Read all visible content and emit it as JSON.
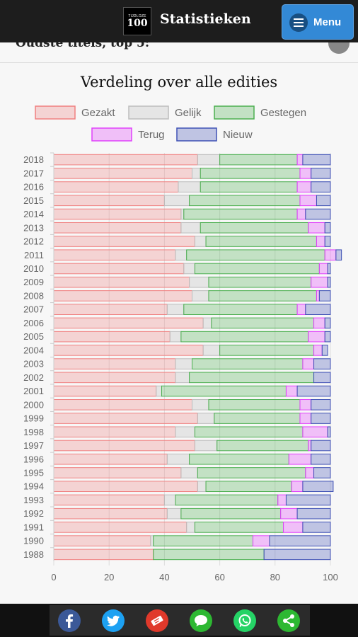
{
  "header": {
    "title": "Statistieken",
    "menu_label": "Menu",
    "logo_line1": "TIJDLOZE",
    "logo_line2": "100"
  },
  "partial_heading": "Oudste titels, top 5:",
  "colors": {
    "Gezakt": "#f08080",
    "Gelijk": "#bdbdbd",
    "Gestegen": "#4caf50",
    "Terug": "#e040fb",
    "Nieuw": "#3f51b5"
  },
  "share_icons": [
    {
      "name": "facebook-icon",
      "color": "#3b5998"
    },
    {
      "name": "twitter-icon",
      "color": "#1da1f2"
    },
    {
      "name": "ticket-icon",
      "color": "#e0392b"
    },
    {
      "name": "sms-icon",
      "color": "#2db832"
    },
    {
      "name": "whatsapp-icon",
      "color": "#25d366"
    },
    {
      "name": "share-icon",
      "color": "#2db832"
    }
  ],
  "chart_data": {
    "type": "bar",
    "orientation": "horizontal",
    "stacked": true,
    "title": "Verdeling over alle edities",
    "categories": [
      "2018",
      "2017",
      "2016",
      "2015",
      "2014",
      "2013",
      "2012",
      "2011",
      "2010",
      "2009",
      "2008",
      "2007",
      "2006",
      "2005",
      "2004",
      "2003",
      "2002",
      "2001",
      "2000",
      "1999",
      "1998",
      "1997",
      "1996",
      "1995",
      "1994",
      "1993",
      "1992",
      "1991",
      "1990",
      "1988"
    ],
    "series": [
      {
        "name": "Gezakt",
        "values": [
          52,
          50,
          45,
          40,
          46,
          46,
          51,
          44,
          47,
          49,
          50,
          41,
          54,
          42,
          54,
          44,
          44,
          37,
          50,
          52,
          44,
          51,
          41,
          46,
          52,
          40,
          41,
          48,
          35,
          36
        ]
      },
      {
        "name": "Gelijk",
        "values": [
          8,
          3,
          8,
          9,
          1,
          7,
          4,
          4,
          4,
          7,
          6,
          6,
          3,
          4,
          6,
          6,
          5,
          2,
          6,
          6,
          7,
          8,
          8,
          6,
          3,
          4,
          5,
          3,
          1,
          0
        ]
      },
      {
        "name": "Gestegen",
        "values": [
          28,
          36,
          35,
          40,
          41,
          39,
          40,
          50,
          45,
          37,
          39,
          41,
          37,
          46,
          34,
          40,
          45,
          45,
          33,
          31,
          39,
          33,
          36,
          39,
          31,
          37,
          36,
          32,
          36,
          40
        ]
      },
      {
        "name": "Terug",
        "values": [
          2,
          4,
          5,
          6,
          3,
          6,
          3,
          4,
          3,
          6,
          1,
          3,
          4,
          6,
          3,
          4,
          0,
          4,
          4,
          4,
          9,
          1,
          8,
          3,
          4,
          3,
          6,
          7,
          6,
          0
        ]
      },
      {
        "name": "Nieuw",
        "values": [
          10,
          7,
          7,
          5,
          9,
          2,
          2,
          2,
          1,
          1,
          4,
          9,
          2,
          2,
          2,
          6,
          6,
          12,
          7,
          7,
          1,
          7,
          7,
          6,
          11,
          16,
          12,
          10,
          22,
          24
        ]
      }
    ],
    "xlim": [
      0,
      100
    ],
    "xticks": [
      0,
      20,
      40,
      60,
      80,
      100
    ],
    "legend_position": "top",
    "grid": true
  }
}
